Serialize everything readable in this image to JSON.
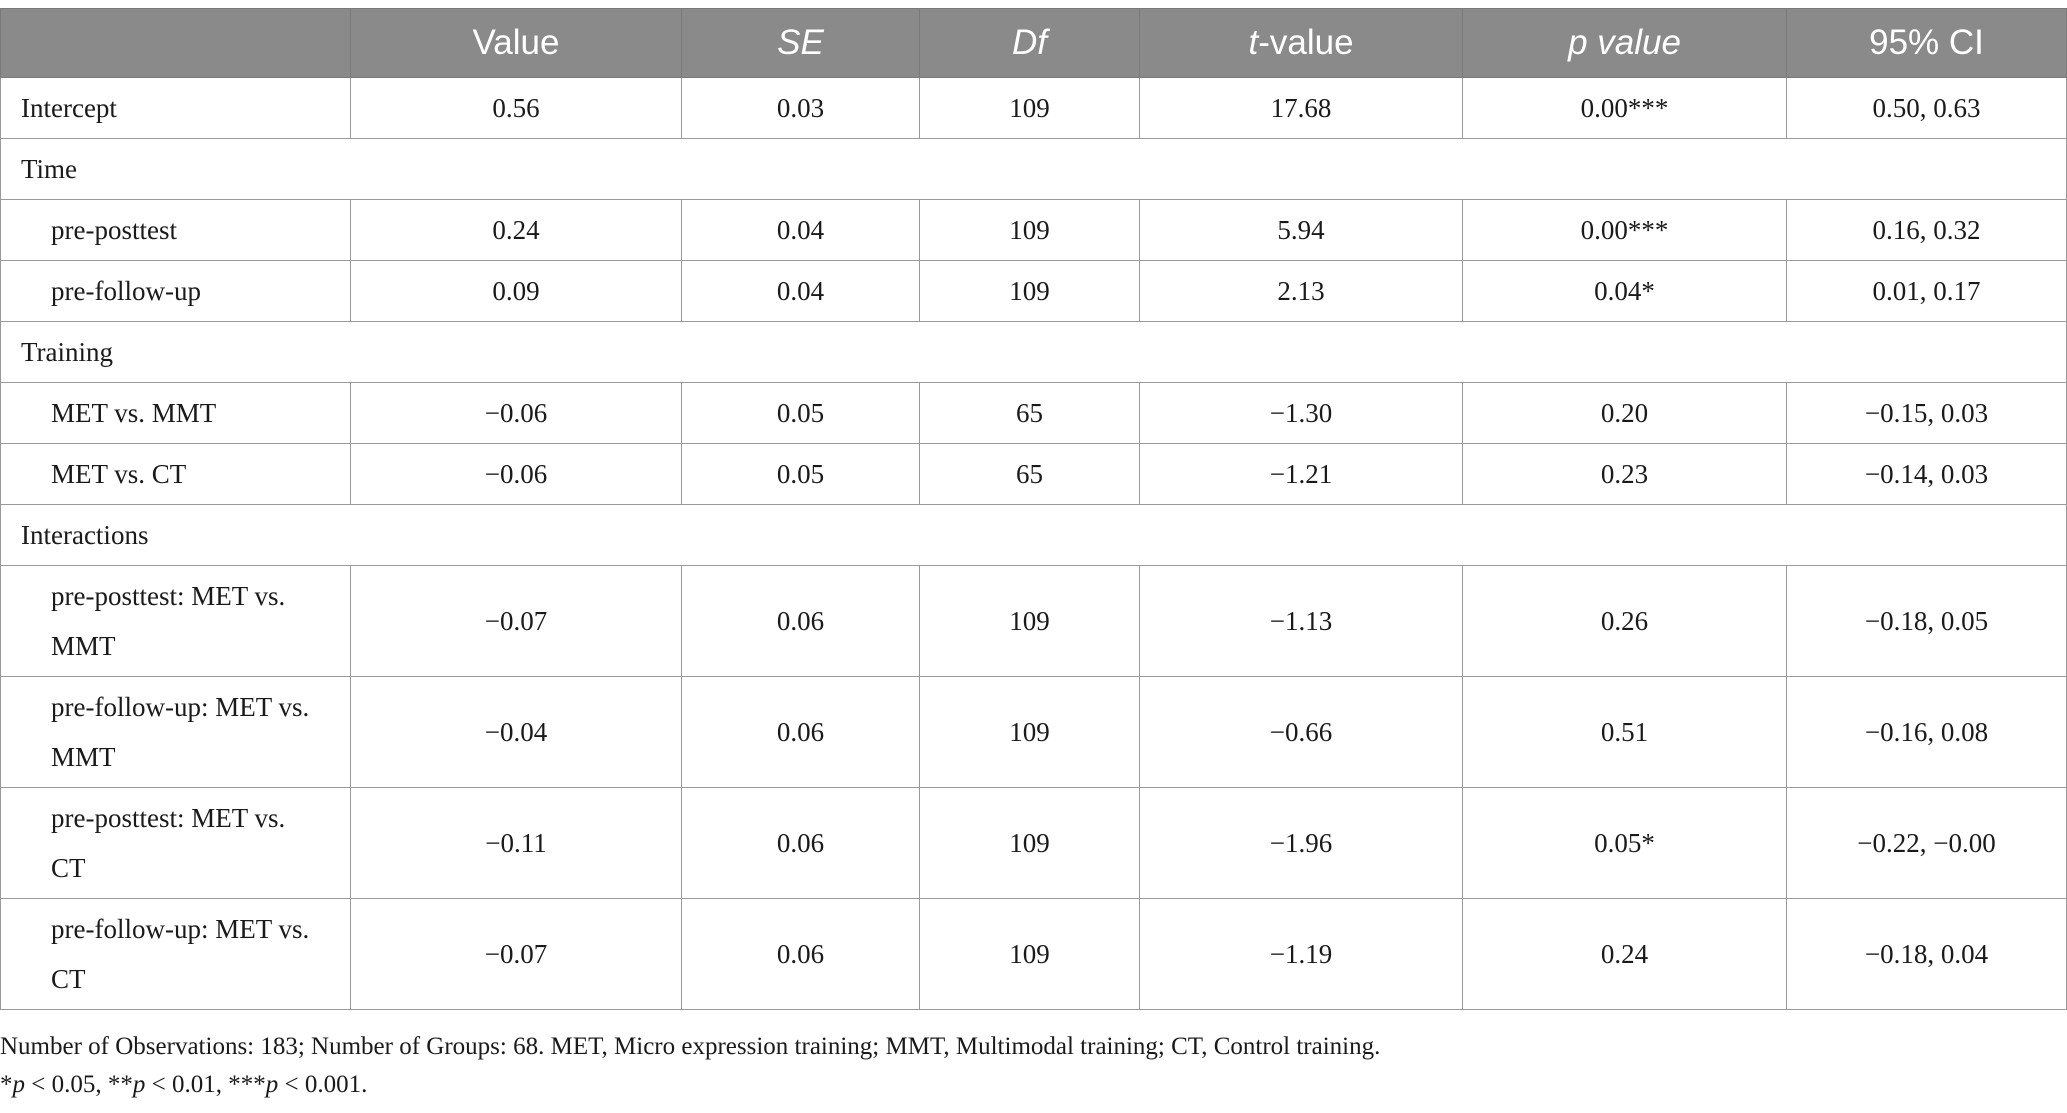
{
  "table": {
    "headers": {
      "col0": "",
      "value": "Value",
      "se": "SE",
      "df": "Df",
      "t_prefix": "t",
      "t_suffix": "-value",
      "p": "p value",
      "ci": "95% CI"
    },
    "rows": [
      {
        "type": "data",
        "label": "Intercept",
        "value": "0.56",
        "se": "0.03",
        "df": "109",
        "t": "17.68",
        "p": "0.00***",
        "ci": "0.50, 0.63"
      },
      {
        "type": "section",
        "label": "Time"
      },
      {
        "type": "data",
        "indent": true,
        "label": "pre-posttest",
        "value": "0.24",
        "se": "0.04",
        "df": "109",
        "t": "5.94",
        "p": "0.00***",
        "ci": "0.16, 0.32"
      },
      {
        "type": "data",
        "indent": true,
        "label": "pre-follow-up",
        "value": "0.09",
        "se": "0.04",
        "df": "109",
        "t": "2.13",
        "p": "0.04*",
        "ci": "0.01, 0.17"
      },
      {
        "type": "section",
        "label": "Training"
      },
      {
        "type": "data",
        "indent": true,
        "label": "MET vs. MMT",
        "value": "−0.06",
        "se": "0.05",
        "df": "65",
        "t": "−1.30",
        "p": "0.20",
        "ci": "−0.15, 0.03"
      },
      {
        "type": "data",
        "indent": true,
        "label": "MET vs. CT",
        "value": "−0.06",
        "se": "0.05",
        "df": "65",
        "t": "−1.21",
        "p": "0.23",
        "ci": "−0.14, 0.03"
      },
      {
        "type": "section",
        "label": "Interactions"
      },
      {
        "type": "double",
        "indent": true,
        "label_line1": "pre-posttest: MET vs.",
        "label_line2": "MMT",
        "value": "−0.07",
        "se": "0.06",
        "df": "109",
        "t": "−1.13",
        "p": "0.26",
        "ci": "−0.18, 0.05"
      },
      {
        "type": "double",
        "indent": true,
        "label_line1": "pre-follow-up: MET vs.",
        "label_line2": "MMT",
        "value": "−0.04",
        "se": "0.06",
        "df": "109",
        "t": "−0.66",
        "p": "0.51",
        "ci": "−0.16, 0.08"
      },
      {
        "type": "double",
        "indent": true,
        "label_line1": "pre-posttest: MET vs.",
        "label_line2": "CT",
        "value": "−0.11",
        "se": "0.06",
        "df": "109",
        "t": "−1.96",
        "p": "0.05*",
        "ci": "−0.22, −0.00"
      },
      {
        "type": "double",
        "indent": true,
        "label_line1": "pre-follow-up: MET vs.",
        "label_line2": "CT",
        "value": "−0.07",
        "se": "0.06",
        "df": "109",
        "t": "−1.19",
        "p": "0.24",
        "ci": "−0.18, 0.04"
      }
    ]
  },
  "footnotes": {
    "line1": "Number of Observations: 183; Number of Groups: 68. MET, Micro expression training; MMT, Multimodal training; CT, Control training.",
    "line2_parts": [
      "*",
      "p",
      " < 0.05, **",
      "p",
      " < 0.01, ***",
      "p",
      " < 0.001."
    ]
  }
}
